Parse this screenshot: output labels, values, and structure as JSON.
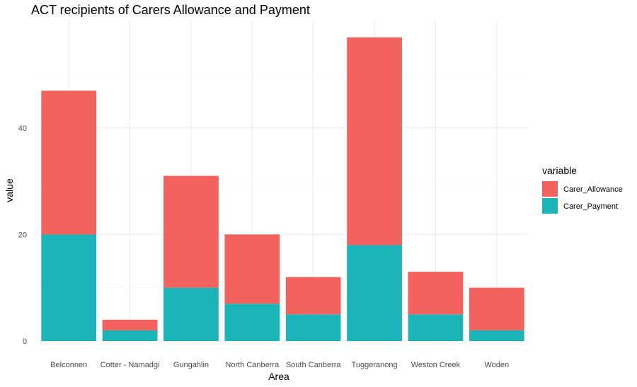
{
  "chart_data": {
    "type": "bar",
    "stacked": true,
    "title": "ACT recipients of Carers Allowance and Payment",
    "xlabel": "Area",
    "ylabel": "value",
    "categories": [
      "Belconnen",
      "Cotter - Namadgi",
      "Gungahlin",
      "North Canberra",
      "South Canberra",
      "Tuggeranong",
      "Weston Creek",
      "Woden"
    ],
    "series": [
      {
        "name": "Carer_Payment",
        "color": "#1bb4b8",
        "values": [
          20,
          2,
          10,
          7,
          5,
          18,
          5,
          2
        ]
      },
      {
        "name": "Carer_Allowance",
        "color": "#f3625c",
        "values": [
          27,
          2,
          21,
          13,
          7,
          39,
          8,
          8
        ]
      }
    ],
    "ylim": [
      0,
      59
    ],
    "yticks": [
      0,
      20,
      40
    ],
    "grid": true,
    "legend": {
      "title": "variable",
      "position": "right",
      "entries": [
        {
          "label": "Carer_Allowance",
          "color": "#f3625c"
        },
        {
          "label": "Carer_Payment",
          "color": "#1bb4b8"
        }
      ]
    }
  }
}
